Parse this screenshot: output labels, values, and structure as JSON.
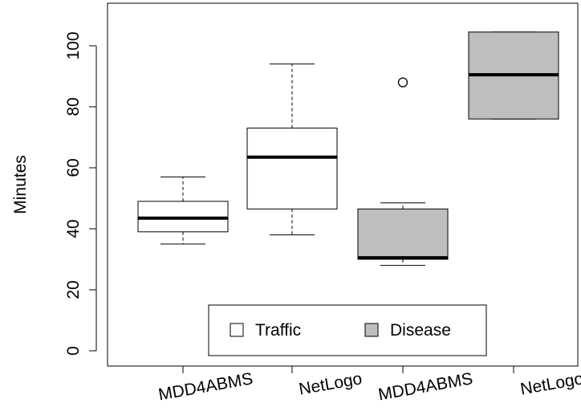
{
  "chart_data": {
    "type": "boxplot",
    "ylabel": "Minutes",
    "ylim": [
      0,
      110
    ],
    "yticks": [
      "0",
      "20",
      "40",
      "60",
      "80",
      "100"
    ],
    "categories": [
      "MDD4ABMS",
      "NetLogo",
      "MDD4ABMS",
      "NetLogo"
    ],
    "legend": {
      "position": "bottom-center",
      "entries": [
        {
          "label": "Traffic",
          "color": "#ffffff"
        },
        {
          "label": "Disease",
          "color": "#bebebe"
        }
      ]
    },
    "boxes": [
      {
        "category": "MDD4ABMS",
        "group": "Traffic",
        "min": 35,
        "q1": 39,
        "median": 43.5,
        "q3": 49,
        "max": 57,
        "outliers": []
      },
      {
        "category": "NetLogo",
        "group": "Traffic",
        "min": 38,
        "q1": 46.5,
        "median": 63.5,
        "q3": 73,
        "max": 94,
        "outliers": []
      },
      {
        "category": "MDD4ABMS",
        "group": "Disease",
        "min": 28,
        "q1": 30,
        "median": 30.5,
        "q3": 46.5,
        "max": 48.5,
        "outliers": [
          88
        ]
      },
      {
        "category": "NetLogo",
        "group": "Disease",
        "min": 76,
        "q1": 76,
        "median": 90.5,
        "q3": 104.5,
        "max": 104.5,
        "outliers": []
      }
    ],
    "colors": {
      "Traffic": "#ffffff",
      "Disease": "#bebebe"
    }
  }
}
